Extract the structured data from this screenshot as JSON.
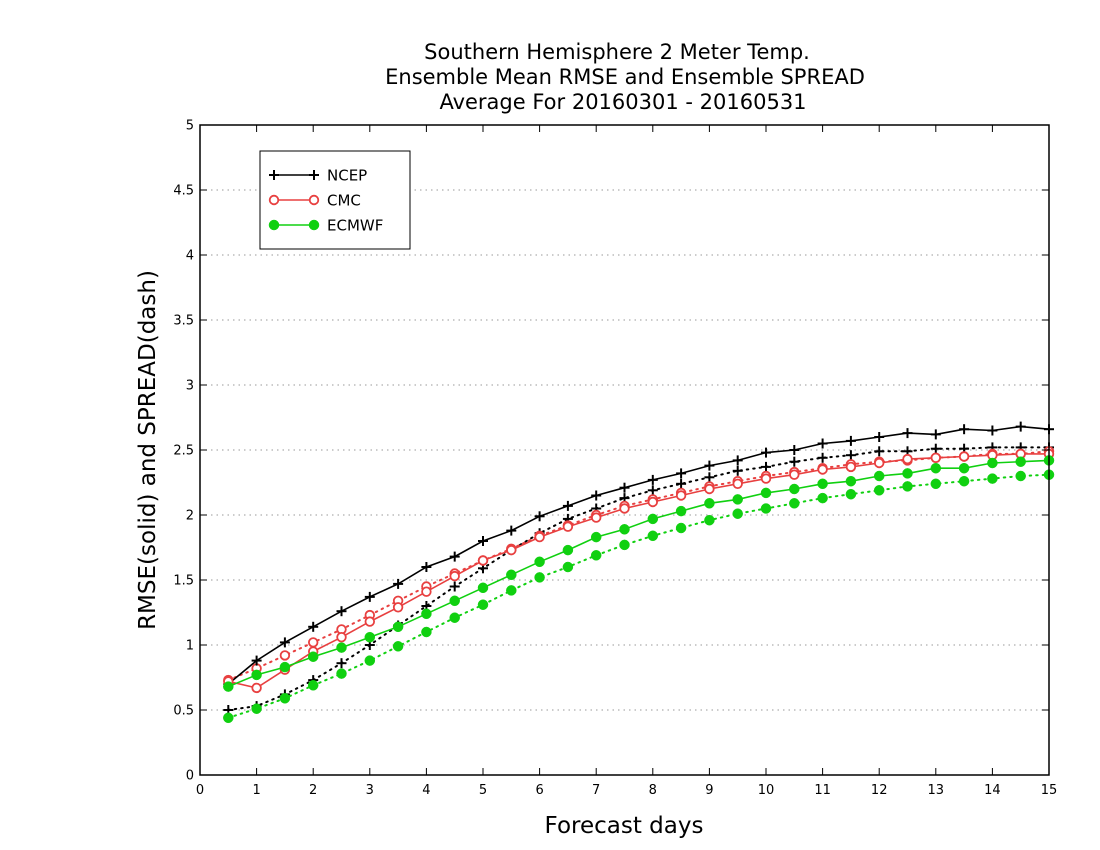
{
  "chart_data": {
    "type": "line",
    "title_lines": [
      "Southern Hemisphere 2 Meter Temp.",
      "Ensemble Mean RMSE and Ensemble SPREAD",
      "Average For 20160301 - 20160531"
    ],
    "xlabel": "Forecast days",
    "ylabel": "RMSE(solid) and SPREAD(dash)",
    "xlim": [
      0,
      15
    ],
    "ylim": [
      0,
      5
    ],
    "xticks": [
      "0",
      "1",
      "2",
      "3",
      "4",
      "5",
      "6",
      "7",
      "8",
      "9",
      "10",
      "11",
      "12",
      "13",
      "14",
      "15"
    ],
    "yticks": [
      "0",
      "0.5",
      "1",
      "1.5",
      "2",
      "2.5",
      "3",
      "3.5",
      "4",
      "4.5",
      "5"
    ],
    "grid": "horizontal dotted",
    "legend_position": "top-left",
    "legend": [
      {
        "name": "NCEP",
        "color": "#000000",
        "marker": "plus"
      },
      {
        "name": "CMC",
        "color": "#e84040",
        "marker": "open-circle"
      },
      {
        "name": "ECMWF",
        "color": "#10d010",
        "marker": "filled-circle"
      }
    ],
    "x": [
      0.5,
      1,
      1.5,
      2,
      2.5,
      3,
      3.5,
      4,
      4.5,
      5,
      5.5,
      6,
      6.5,
      7,
      7.5,
      8,
      8.5,
      9,
      9.5,
      10,
      10.5,
      11,
      11.5,
      12,
      12.5,
      13,
      13.5,
      14,
      14.5,
      15
    ],
    "series": [
      {
        "name": "NCEP",
        "kind": "RMSE",
        "style": "solid",
        "color": "#000000",
        "marker": "plus",
        "values": [
          0.7,
          0.88,
          1.02,
          1.14,
          1.26,
          1.37,
          1.47,
          1.6,
          1.68,
          1.8,
          1.88,
          1.99,
          2.07,
          2.15,
          2.21,
          2.27,
          2.32,
          2.38,
          2.42,
          2.48,
          2.5,
          2.55,
          2.57,
          2.6,
          2.63,
          2.62,
          2.66,
          2.65,
          2.68,
          2.66
        ]
      },
      {
        "name": "NCEP",
        "kind": "SPREAD",
        "style": "dash",
        "color": "#000000",
        "marker": "plus",
        "values": [
          0.5,
          0.53,
          0.62,
          0.73,
          0.86,
          1.0,
          1.15,
          1.3,
          1.45,
          1.59,
          1.73,
          1.86,
          1.97,
          2.05,
          2.13,
          2.19,
          2.24,
          2.29,
          2.34,
          2.37,
          2.41,
          2.44,
          2.46,
          2.49,
          2.49,
          2.51,
          2.51,
          2.52,
          2.52,
          2.52
        ]
      },
      {
        "name": "CMC",
        "kind": "RMSE",
        "style": "solid",
        "color": "#e84040",
        "marker": "open-circle",
        "values": [
          0.72,
          0.67,
          0.81,
          0.95,
          1.06,
          1.18,
          1.29,
          1.41,
          1.53,
          1.65,
          1.73,
          1.83,
          1.91,
          1.98,
          2.05,
          2.1,
          2.15,
          2.2,
          2.24,
          2.28,
          2.31,
          2.35,
          2.37,
          2.4,
          2.43,
          2.44,
          2.45,
          2.46,
          2.47,
          2.47
        ]
      },
      {
        "name": "CMC",
        "kind": "SPREAD",
        "style": "dash",
        "color": "#e84040",
        "marker": "open-circle",
        "values": [
          0.73,
          0.82,
          0.92,
          1.02,
          1.12,
          1.23,
          1.34,
          1.45,
          1.55,
          1.65,
          1.74,
          1.84,
          1.92,
          2.0,
          2.07,
          2.12,
          2.17,
          2.22,
          2.26,
          2.3,
          2.33,
          2.36,
          2.39,
          2.41,
          2.42,
          2.44,
          2.45,
          2.47,
          2.47,
          2.49
        ]
      },
      {
        "name": "ECMWF",
        "kind": "RMSE",
        "style": "solid",
        "color": "#10d010",
        "marker": "filled-circle",
        "values": [
          0.68,
          0.77,
          0.83,
          0.91,
          0.98,
          1.06,
          1.14,
          1.24,
          1.34,
          1.44,
          1.54,
          1.64,
          1.73,
          1.83,
          1.89,
          1.97,
          2.03,
          2.09,
          2.12,
          2.17,
          2.2,
          2.24,
          2.26,
          2.3,
          2.32,
          2.36,
          2.36,
          2.4,
          2.41,
          2.42
        ]
      },
      {
        "name": "ECMWF",
        "kind": "SPREAD",
        "style": "dash",
        "color": "#10d010",
        "marker": "filled-circle",
        "values": [
          0.44,
          0.51,
          0.59,
          0.69,
          0.78,
          0.88,
          0.99,
          1.1,
          1.21,
          1.31,
          1.42,
          1.52,
          1.6,
          1.69,
          1.77,
          1.84,
          1.9,
          1.96,
          2.01,
          2.05,
          2.09,
          2.13,
          2.16,
          2.19,
          2.22,
          2.24,
          2.26,
          2.28,
          2.3,
          2.31
        ]
      }
    ]
  }
}
